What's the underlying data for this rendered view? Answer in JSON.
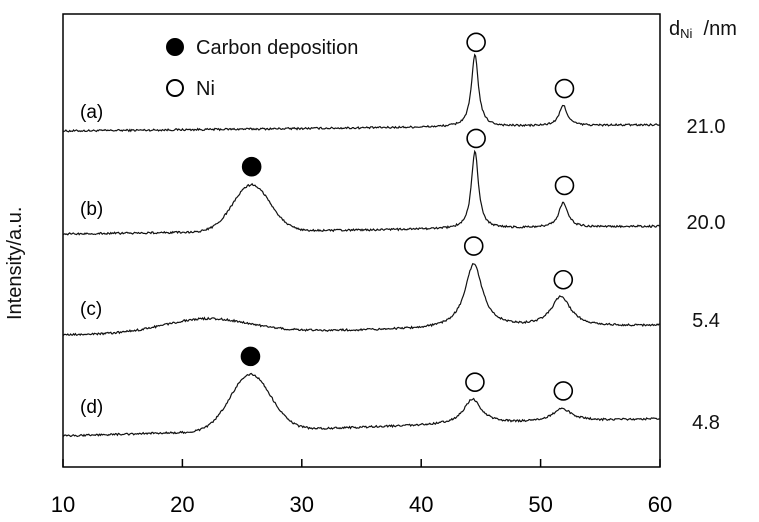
{
  "chart_data": {
    "type": "line",
    "title": "",
    "xlabel": "",
    "ylabel": "Intensity/a.u.",
    "xlim": [
      10,
      60
    ],
    "xticks": [
      "10",
      "20",
      "30",
      "40",
      "50",
      "60"
    ],
    "grid": false,
    "legend": {
      "placement": "top-center",
      "entries": [
        {
          "marker": "filled-circle",
          "label": "Carbon deposition"
        },
        {
          "marker": "open-circle",
          "label": "Ni"
        }
      ]
    },
    "right_header": {
      "main": "d",
      "sub": "Ni",
      "unit": "/nm"
    },
    "series": [
      {
        "name": "(a)",
        "d_ni": "21.0",
        "peaks": [
          {
            "x": 44.5,
            "h": 0.92,
            "w": 0.35
          },
          {
            "x": 51.9,
            "h": 0.26,
            "w": 0.4
          }
        ],
        "baseline": 0.04,
        "hump": null,
        "markers": [
          {
            "type": "open",
            "x": 44.6
          },
          {
            "type": "open",
            "x": 52.0
          }
        ]
      },
      {
        "name": "(b)",
        "d_ni": "20.0",
        "peaks": [
          {
            "x": 44.5,
            "h": 1.0,
            "w": 0.35
          },
          {
            "x": 51.9,
            "h": 0.32,
            "w": 0.45
          }
        ],
        "baseline": 0.05,
        "hump": {
          "x": 25.8,
          "h": 0.6,
          "w": 2.2
        },
        "markers": [
          {
            "type": "filled",
            "x": 25.8
          },
          {
            "type": "open",
            "x": 44.6
          },
          {
            "type": "open",
            "x": 52.0
          }
        ]
      },
      {
        "name": "(c)",
        "d_ni": "5.4",
        "peaks": [
          {
            "x": 44.4,
            "h": 0.82,
            "w": 0.9
          },
          {
            "x": 51.7,
            "h": 0.38,
            "w": 1.0
          }
        ],
        "baseline": 0.06,
        "hump": {
          "x": 22.0,
          "h": 0.18,
          "w": 5.0
        },
        "markers": [
          {
            "type": "open",
            "x": 44.4
          },
          {
            "type": "open",
            "x": 51.9
          }
        ]
      },
      {
        "name": "(d)",
        "d_ni": "4.8",
        "peaks": [
          {
            "x": 44.3,
            "h": 0.32,
            "w": 0.9
          },
          {
            "x": 51.8,
            "h": 0.16,
            "w": 1.0
          }
        ],
        "baseline": 0.0,
        "hump": {
          "x": 25.7,
          "h": 0.72,
          "w": 2.4
        },
        "markers": [
          {
            "type": "filled",
            "x": 25.7
          },
          {
            "type": "open",
            "x": 44.5
          },
          {
            "type": "open",
            "x": 51.9
          }
        ]
      }
    ]
  }
}
